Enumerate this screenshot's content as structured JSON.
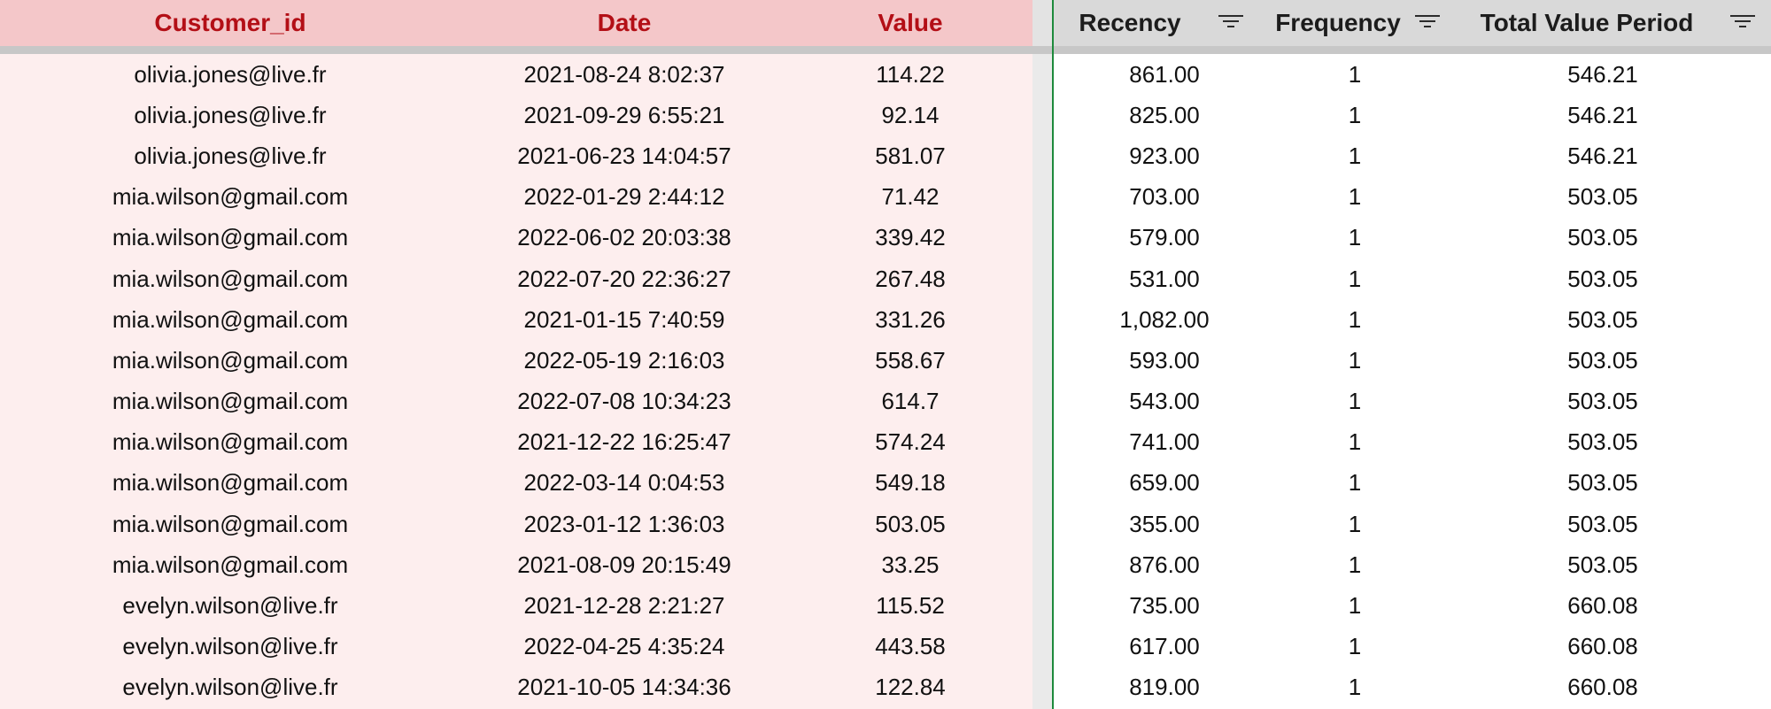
{
  "headers": {
    "customer_id": "Customer_id",
    "date": "Date",
    "value": "Value",
    "recency": "Recency",
    "frequency": "Frequency",
    "total_value_period": "Total Value Period"
  },
  "filter_icon": "filter-icon",
  "colors": {
    "left_header_bg": "#f4c7c9",
    "left_header_text": "#b30f16",
    "left_body_bg": "#fdeeee",
    "right_header_bg": "#d9d9d9",
    "selection_border": "#1e8a3c"
  },
  "rows": [
    {
      "customer_id": "olivia.jones@live.fr",
      "date": "2021-08-24 8:02:37",
      "value": "114.22",
      "recency": "861.00",
      "frequency": "1",
      "total_value_period": "546.21"
    },
    {
      "customer_id": "olivia.jones@live.fr",
      "date": "2021-09-29 6:55:21",
      "value": "92.14",
      "recency": "825.00",
      "frequency": "1",
      "total_value_period": "546.21"
    },
    {
      "customer_id": "olivia.jones@live.fr",
      "date": "2021-06-23 14:04:57",
      "value": "581.07",
      "recency": "923.00",
      "frequency": "1",
      "total_value_period": "546.21"
    },
    {
      "customer_id": "mia.wilson@gmail.com",
      "date": "2022-01-29 2:44:12",
      "value": "71.42",
      "recency": "703.00",
      "frequency": "1",
      "total_value_period": "503.05"
    },
    {
      "customer_id": "mia.wilson@gmail.com",
      "date": "2022-06-02 20:03:38",
      "value": "339.42",
      "recency": "579.00",
      "frequency": "1",
      "total_value_period": "503.05"
    },
    {
      "customer_id": "mia.wilson@gmail.com",
      "date": "2022-07-20 22:36:27",
      "value": "267.48",
      "recency": "531.00",
      "frequency": "1",
      "total_value_period": "503.05"
    },
    {
      "customer_id": "mia.wilson@gmail.com",
      "date": "2021-01-15 7:40:59",
      "value": "331.26",
      "recency": "1,082.00",
      "frequency": "1",
      "total_value_period": "503.05"
    },
    {
      "customer_id": "mia.wilson@gmail.com",
      "date": "2022-05-19 2:16:03",
      "value": "558.67",
      "recency": "593.00",
      "frequency": "1",
      "total_value_period": "503.05"
    },
    {
      "customer_id": "mia.wilson@gmail.com",
      "date": "2022-07-08 10:34:23",
      "value": "614.7",
      "recency": "543.00",
      "frequency": "1",
      "total_value_period": "503.05"
    },
    {
      "customer_id": "mia.wilson@gmail.com",
      "date": "2021-12-22 16:25:47",
      "value": "574.24",
      "recency": "741.00",
      "frequency": "1",
      "total_value_period": "503.05"
    },
    {
      "customer_id": "mia.wilson@gmail.com",
      "date": "2022-03-14 0:04:53",
      "value": "549.18",
      "recency": "659.00",
      "frequency": "1",
      "total_value_period": "503.05"
    },
    {
      "customer_id": "mia.wilson@gmail.com",
      "date": "2023-01-12 1:36:03",
      "value": "503.05",
      "recency": "355.00",
      "frequency": "1",
      "total_value_period": "503.05"
    },
    {
      "customer_id": "mia.wilson@gmail.com",
      "date": "2021-08-09 20:15:49",
      "value": "33.25",
      "recency": "876.00",
      "frequency": "1",
      "total_value_period": "503.05"
    },
    {
      "customer_id": "evelyn.wilson@live.fr",
      "date": "2021-12-28 2:21:27",
      "value": "115.52",
      "recency": "735.00",
      "frequency": "1",
      "total_value_period": "660.08"
    },
    {
      "customer_id": "evelyn.wilson@live.fr",
      "date": "2022-04-25 4:35:24",
      "value": "443.58",
      "recency": "617.00",
      "frequency": "1",
      "total_value_period": "660.08"
    },
    {
      "customer_id": "evelyn.wilson@live.fr",
      "date": "2021-10-05 14:34:36",
      "value": "122.84",
      "recency": "819.00",
      "frequency": "1",
      "total_value_period": "660.08"
    }
  ]
}
